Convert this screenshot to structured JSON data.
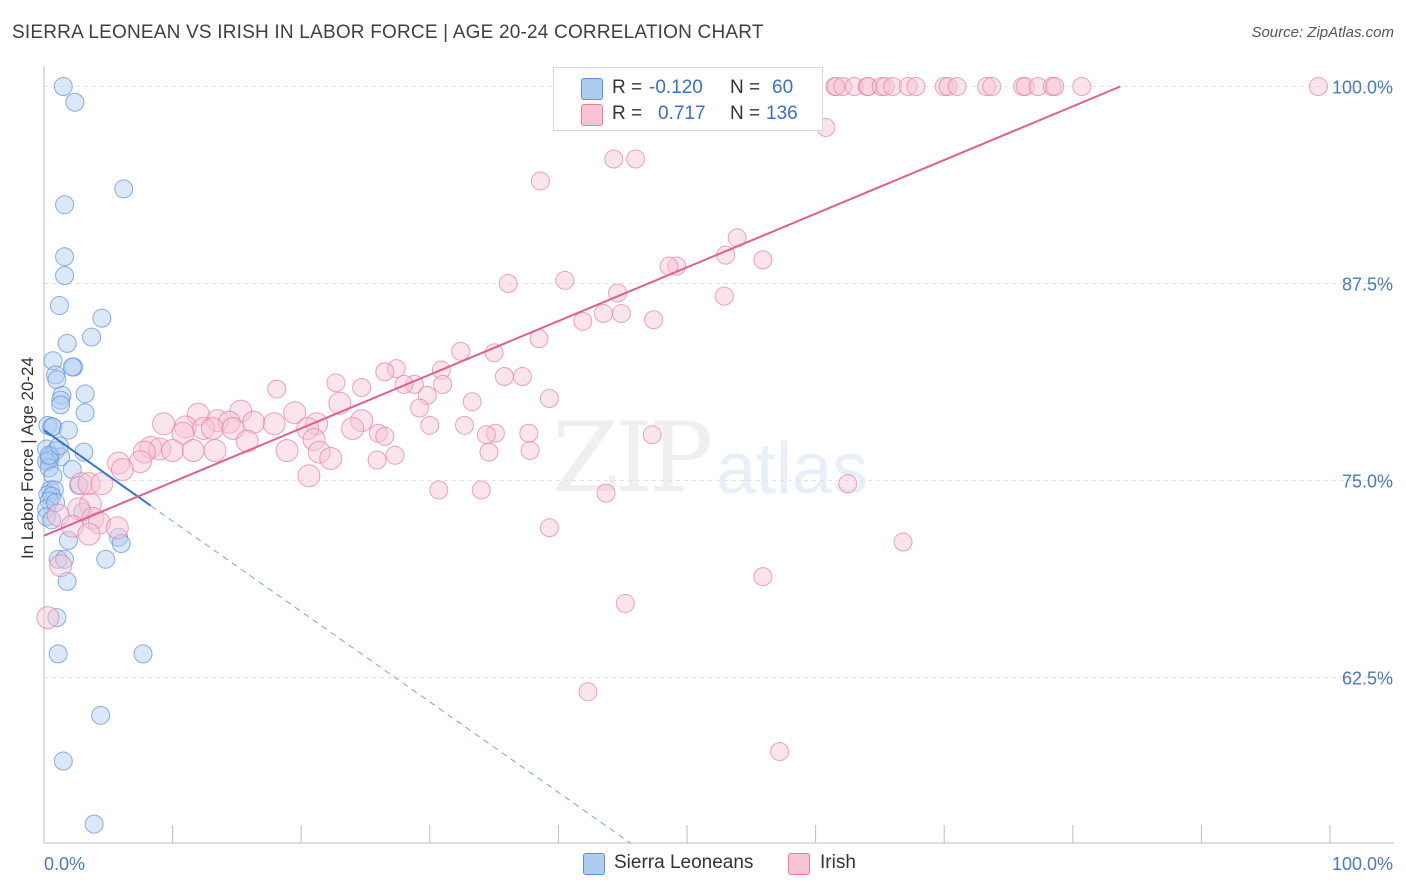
{
  "title": "SIERRA LEONEAN VS IRISH IN LABOR FORCE | AGE 20-24 CORRELATION CHART",
  "source": "Source: ZipAtlas.com",
  "watermark": {
    "zip": "ZIP",
    "atlas": "atlas"
  },
  "legend": {
    "rows": [
      {
        "r_label": "R = ",
        "r_value": "-0.120",
        "n_label": "N = ",
        "n_value": "60",
        "color": "#aecbf0",
        "border": "#5b8fd8"
      },
      {
        "r_label": "R = ",
        "r_value": "0.717",
        "n_label": "N = ",
        "n_value": "136",
        "color": "#f8c4d4",
        "border": "#e57fa0"
      }
    ]
  },
  "bottom_legend": [
    {
      "label": "Sierra Leoneans",
      "color": "#aecbf0",
      "border": "#5b8fd8"
    },
    {
      "label": "Irish",
      "color": "#f8c4d4",
      "border": "#e57fa0"
    }
  ],
  "chart_data": {
    "type": "scatter",
    "title": "SIERRA LEONEAN VS IRISH IN LABOR FORCE | AGE 20-24 CORRELATION CHART",
    "xlabel": "",
    "ylabel": "In Labor Force | Age 20-24",
    "xlim": [
      0,
      100
    ],
    "ylim": [
      52,
      101.3
    ],
    "x_tick_labels": [
      {
        "value": 0,
        "label": "0.0%"
      },
      {
        "value": 100,
        "label": "100.0%"
      }
    ],
    "y_tick_labels": [
      {
        "value": 62.5,
        "label": "62.5%"
      },
      {
        "value": 75.0,
        "label": "75.0%"
      },
      {
        "value": 87.5,
        "label": "87.5%"
      },
      {
        "value": 100.0,
        "label": "100.0%"
      }
    ],
    "series": [
      {
        "name": "Sierra Leoneans",
        "color": "#aecbf0",
        "stroke": "#5b8fd8",
        "trend": {
          "x": [
            0,
            8.3
          ],
          "y": [
            78.2,
            73.4
          ],
          "dashed_to": {
            "x": 45.6,
            "y": 52
          }
        },
        "points": [
          [
            1.5,
            100
          ],
          [
            2.4,
            99
          ],
          [
            1.6,
            92.5
          ],
          [
            6.2,
            93.5
          ],
          [
            1.6,
            89.2
          ],
          [
            1.6,
            88
          ],
          [
            1.2,
            86.1
          ],
          [
            4.5,
            85.3
          ],
          [
            3.7,
            84.1
          ],
          [
            1.8,
            83.7
          ],
          [
            0.7,
            82.6
          ],
          [
            2.3,
            82.2
          ],
          [
            2.2,
            82.2
          ],
          [
            0.9,
            81.7
          ],
          [
            1.0,
            81.4
          ],
          [
            3.2,
            80.5
          ],
          [
            1.4,
            80.4
          ],
          [
            1.3,
            80.1
          ],
          [
            1.3,
            79.8
          ],
          [
            3.2,
            79.3
          ],
          [
            0.3,
            78.5
          ],
          [
            0.6,
            78.4
          ],
          [
            0.7,
            78.4
          ],
          [
            1.9,
            78.2
          ],
          [
            0.2,
            77
          ],
          [
            0.9,
            76.9
          ],
          [
            3.1,
            76.8
          ],
          [
            0.5,
            76.5
          ],
          [
            1.3,
            76.5
          ],
          [
            0.4,
            76.3
          ],
          [
            0.2,
            76.2
          ],
          [
            0.4,
            75.8
          ],
          [
            2.2,
            75.7
          ],
          [
            0.7,
            75.3
          ],
          [
            2.7,
            74.7
          ],
          [
            0.5,
            74.4
          ],
          [
            0.8,
            74.4
          ],
          [
            0.3,
            74.1
          ],
          [
            0.6,
            74.0
          ],
          [
            0.4,
            73.7
          ],
          [
            0.2,
            73.2
          ],
          [
            3.0,
            73.0
          ],
          [
            0.2,
            72.7
          ],
          [
            0.6,
            72.5
          ],
          [
            5.8,
            71.4
          ],
          [
            6.0,
            71.0
          ],
          [
            1.9,
            71.2
          ],
          [
            1.1,
            70
          ],
          [
            1.6,
            70
          ],
          [
            4.8,
            70
          ],
          [
            1.8,
            68.6
          ],
          [
            1.0,
            66.3
          ],
          [
            1.1,
            64
          ],
          [
            7.7,
            64
          ],
          [
            4.4,
            60.1
          ],
          [
            1.5,
            57.2
          ],
          [
            3.9,
            53.2
          ],
          [
            0.4,
            76.6
          ],
          [
            1.2,
            77.2
          ],
          [
            0.9,
            73.6
          ]
        ]
      },
      {
        "name": "Irish",
        "color": "#f8c4d4",
        "stroke": "#e57fa0",
        "trend": {
          "x": [
            0,
            83.7
          ],
          "y": [
            71.5,
            100
          ]
        },
        "points": [
          [
            47.6,
            100
          ],
          [
            49.2,
            100
          ],
          [
            50.1,
            100
          ],
          [
            52.7,
            100
          ],
          [
            54.0,
            100
          ],
          [
            56.1,
            100
          ],
          [
            56.3,
            100
          ],
          [
            57.4,
            100
          ],
          [
            58.6,
            100
          ],
          [
            61.5,
            100
          ],
          [
            61.6,
            100
          ],
          [
            62.1,
            100
          ],
          [
            63.0,
            100
          ],
          [
            64.0,
            100
          ],
          [
            64.1,
            100
          ],
          [
            65.1,
            100
          ],
          [
            65.4,
            100
          ],
          [
            66.0,
            100
          ],
          [
            67.2,
            100
          ],
          [
            67.8,
            100
          ],
          [
            70.0,
            100
          ],
          [
            70.3,
            100
          ],
          [
            71.0,
            100
          ],
          [
            73.3,
            100
          ],
          [
            73.7,
            100
          ],
          [
            76.1,
            100
          ],
          [
            76.3,
            100
          ],
          [
            77.3,
            100
          ],
          [
            78.4,
            100
          ],
          [
            78.6,
            100
          ],
          [
            80.7,
            100
          ],
          [
            99.1,
            100
          ],
          [
            50.9,
            99.4
          ],
          [
            55.5,
            98.2
          ],
          [
            57.5,
            97.9
          ],
          [
            60.8,
            97.4
          ],
          [
            44.3,
            95.4
          ],
          [
            46.0,
            95.4
          ],
          [
            38.6,
            94
          ],
          [
            53.9,
            90.4
          ],
          [
            53.0,
            89.3
          ],
          [
            55.9,
            89.0
          ],
          [
            49.2,
            88.6
          ],
          [
            48.6,
            88.6
          ],
          [
            36.1,
            87.5
          ],
          [
            40.5,
            87.7
          ],
          [
            44.6,
            86.9
          ],
          [
            52.9,
            86.7
          ],
          [
            44.9,
            85.6
          ],
          [
            43.5,
            85.6
          ],
          [
            41.9,
            85.1
          ],
          [
            47.4,
            85.2
          ],
          [
            38.5,
            84
          ],
          [
            32.4,
            83.2
          ],
          [
            35.0,
            83.1
          ],
          [
            27.4,
            82.1
          ],
          [
            26.5,
            81.9
          ],
          [
            30.9,
            82.0
          ],
          [
            35.8,
            81.6
          ],
          [
            37.2,
            81.6
          ],
          [
            22.7,
            81.2
          ],
          [
            28.8,
            81.1
          ],
          [
            31.0,
            81.1
          ],
          [
            28.0,
            81.1
          ],
          [
            24.7,
            80.9
          ],
          [
            18.1,
            80.8
          ],
          [
            29.8,
            80.4
          ],
          [
            33.3,
            80.0
          ],
          [
            39.3,
            80.2
          ],
          [
            23.0,
            79.9
          ],
          [
            29.2,
            79.6
          ],
          [
            19.5,
            79.3
          ],
          [
            15.3,
            79.4
          ],
          [
            12.0,
            79.2
          ],
          [
            13.5,
            78.8
          ],
          [
            14.4,
            78.7
          ],
          [
            9.3,
            78.6
          ],
          [
            16.3,
            78.7
          ],
          [
            17.9,
            78.6
          ],
          [
            24.7,
            78.8
          ],
          [
            21.2,
            78.6
          ],
          [
            32.7,
            78.5
          ],
          [
            30.0,
            78.5
          ],
          [
            11.0,
            78.4
          ],
          [
            12.4,
            78.3
          ],
          [
            13.1,
            78.3
          ],
          [
            14.7,
            78.3
          ],
          [
            10.8,
            78.0
          ],
          [
            26.0,
            78.0
          ],
          [
            35.1,
            78.0
          ],
          [
            24.0,
            78.3
          ],
          [
            20.5,
            78.3
          ],
          [
            37.7,
            78.0
          ],
          [
            47.3,
            77.9
          ],
          [
            26.5,
            77.8
          ],
          [
            34.4,
            77.9
          ],
          [
            21.0,
            77.6
          ],
          [
            15.8,
            77.5
          ],
          [
            8.3,
            77.1
          ],
          [
            9.0,
            77.0
          ],
          [
            10.0,
            76.9
          ],
          [
            11.6,
            76.9
          ],
          [
            13.3,
            76.9
          ],
          [
            7.8,
            76.8
          ],
          [
            18.9,
            76.9
          ],
          [
            21.4,
            76.8
          ],
          [
            37.8,
            76.9
          ],
          [
            34.6,
            76.8
          ],
          [
            27.3,
            76.6
          ],
          [
            22.3,
            76.4
          ],
          [
            25.9,
            76.3
          ],
          [
            5.8,
            76.1
          ],
          [
            7.5,
            76.2
          ],
          [
            6.1,
            75.7
          ],
          [
            20.6,
            75.3
          ],
          [
            2.9,
            74.8
          ],
          [
            3.5,
            74.8
          ],
          [
            4.5,
            74.8
          ],
          [
            62.5,
            74.8
          ],
          [
            30.7,
            74.4
          ],
          [
            34.0,
            74.4
          ],
          [
            43.7,
            74.2
          ],
          [
            3.6,
            73.5
          ],
          [
            2.7,
            73.2
          ],
          [
            1.1,
            72.8
          ],
          [
            3.8,
            72.6
          ],
          [
            4.3,
            72.3
          ],
          [
            2.2,
            72.1
          ],
          [
            5.7,
            72.0
          ],
          [
            3.5,
            71.6
          ],
          [
            39.3,
            72.0
          ],
          [
            66.8,
            71.1
          ],
          [
            1.3,
            69.6
          ],
          [
            55.9,
            68.9
          ],
          [
            45.2,
            67.2
          ],
          [
            0.3,
            66.3
          ],
          [
            42.3,
            61.6
          ],
          [
            57.2,
            57.8
          ]
        ]
      }
    ]
  }
}
